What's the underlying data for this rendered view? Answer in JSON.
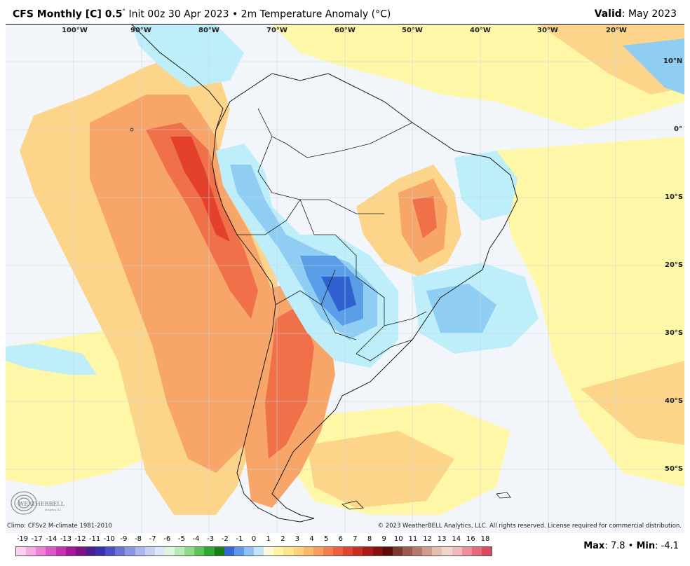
{
  "header": {
    "model": "CFS Monthly [C] 0.5",
    "degree_mark": "°",
    "init": "Init 00z 30 Apr 2023",
    "bullet": "•",
    "field": "2m Temperature Anomaly (°C)",
    "valid_label": "Valid",
    "valid_value": ": May 2023"
  },
  "map": {
    "lon_labels": [
      "100°W",
      "90°W",
      "80°W",
      "70°W",
      "60°W",
      "50°W",
      "40°W",
      "30°W",
      "20°W"
    ],
    "lat_labels": [
      "10°N",
      "0°",
      "10°S",
      "20°S",
      "30°S",
      "40°S",
      "50°S"
    ],
    "colors": {
      "ocean_base": "#f2f6fb",
      "pale_yellow": "#fff7a8",
      "light_orange": "#fcd48a",
      "orange": "#f8a56a",
      "red_orange": "#f07049",
      "deep_red": "#e3412c",
      "light_cyan": "#bdeefa",
      "light_blue": "#8fcdf2",
      "blue": "#5b9ee8",
      "dark_blue": "#2f62cf",
      "border": "#1a1a1a"
    }
  },
  "footer": {
    "climo": "Climo: CFSv2 M-climate 1981-2010",
    "copyright": "© 2023 WeatherBELL Analytics, LLC. All rights reserved. License required for commercial distribution."
  },
  "logo": {
    "text": "WEATHERBELL",
    "sub": "Analytics LLC"
  },
  "legend": {
    "labels": [
      "-19",
      "-17",
      "-14",
      "-13",
      "-12",
      "-11",
      "-10",
      "-9",
      "-8",
      "-7",
      "-6",
      "-5",
      "-4",
      "-3",
      "-2",
      "-1",
      "0",
      "1",
      "2",
      "3",
      "4",
      "5",
      "6",
      "7",
      "8",
      "9",
      "10",
      "11",
      "12",
      "13",
      "14",
      "16",
      "18"
    ],
    "colors": [
      "#fbd0ef",
      "#f6a9e3",
      "#ee7fd6",
      "#e055c6",
      "#c92fb1",
      "#a5169b",
      "#821284",
      "#4b1f94",
      "#3b2fb0",
      "#4a4fc8",
      "#6b72d8",
      "#8b95e4",
      "#aeb6ee",
      "#c7d0f4",
      "#e0e6f9",
      "#dcf5dc",
      "#b9ecb4",
      "#8fdb86",
      "#5ec45a",
      "#2ea82e",
      "#187e1a",
      "#3468d4",
      "#5f96e8",
      "#8fc2f2",
      "#c2e6f8",
      "#fffbd6",
      "#fff3a6",
      "#fde689",
      "#fcd177",
      "#fbb86a",
      "#f89d5c",
      "#f47f4d",
      "#ee5f3e",
      "#e1432f",
      "#cb2c22",
      "#aa1b17",
      "#841110",
      "#5f0a0a",
      "#7a3a30",
      "#9a5a4c",
      "#b77a6a",
      "#d09c8c",
      "#e6bdb0",
      "#f1d4ca",
      "#f5b8c0",
      "#ef8f9b",
      "#e66a7b",
      "#dc4a5e"
    ]
  },
  "stats": {
    "max_label": "Max",
    "max_value": ": 7.8",
    "bullet": "•",
    "min_label": "Min",
    "min_value": ": -4.1"
  }
}
